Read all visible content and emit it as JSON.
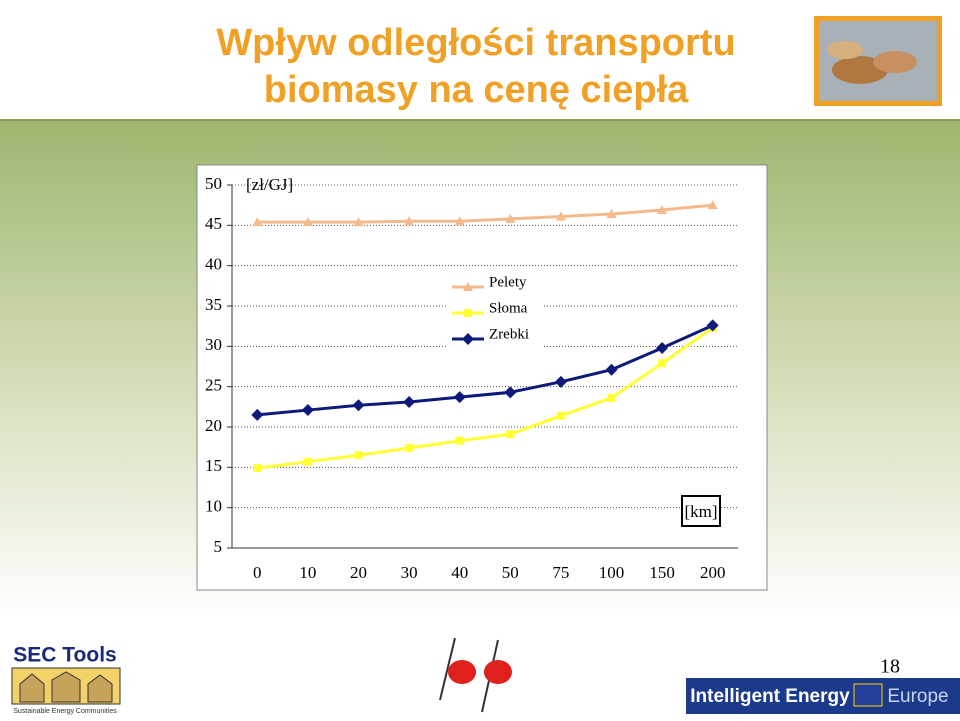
{
  "slide": {
    "title_lines": [
      "Wpływ odległości transportu",
      "biomasy na cenę ciepła"
    ],
    "page_number": "18",
    "logo_left": "SEC Tools",
    "logo_left_caption": "Sustainable Energy Communities",
    "banner_left": "Intelligent Energy",
    "banner_right": "Europe"
  },
  "chart_data": {
    "type": "line",
    "y_label": "[zł/GJ]",
    "x_label": "[km]",
    "categories": [
      "0",
      "10",
      "20",
      "30",
      "40",
      "50",
      "75",
      "100",
      "150",
      "200"
    ],
    "ylim": [
      5,
      50
    ],
    "yticks": [
      5,
      10,
      15,
      20,
      25,
      30,
      35,
      40,
      45,
      50
    ],
    "grid": true,
    "series": [
      {
        "name": "Pelety",
        "color": "#f5b98a",
        "marker": "triangle",
        "values": [
          45.4,
          45.4,
          45.4,
          45.5,
          45.5,
          45.8,
          46.1,
          46.4,
          46.9,
          47.5
        ]
      },
      {
        "name": "Słoma",
        "color": "#ffff33",
        "marker": "square",
        "values": [
          14.9,
          15.7,
          16.5,
          17.4,
          18.3,
          19.1,
          21.4,
          23.6,
          27.9,
          32.3
        ]
      },
      {
        "name": "Zrebki",
        "color": "#0d1a7a",
        "marker": "diamond",
        "values": [
          21.5,
          22.1,
          22.7,
          23.1,
          23.7,
          24.3,
          25.6,
          27.1,
          29.8,
          32.6
        ]
      }
    ]
  }
}
